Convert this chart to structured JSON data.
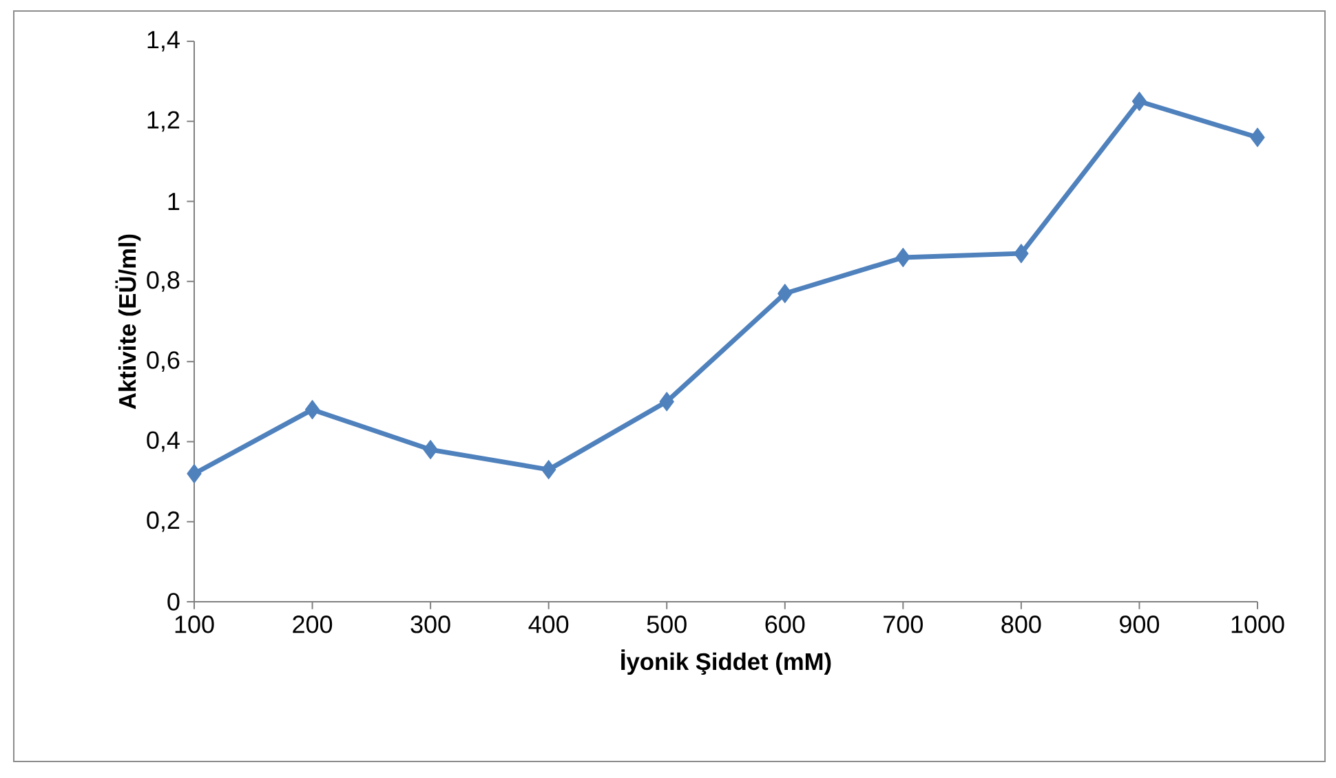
{
  "chart_data": {
    "type": "line",
    "xlabel": "İyonik Şiddet (mM)",
    "ylabel": "Aktivite (EÜ/ml)",
    "categories": [
      "100",
      "200",
      "300",
      "400",
      "500",
      "600",
      "700",
      "800",
      "900",
      "1000"
    ],
    "values": [
      0.32,
      0.48,
      0.38,
      0.33,
      0.5,
      0.77,
      0.86,
      0.87,
      1.25,
      1.16
    ],
    "color": "#4f81bd",
    "marker": "diamond",
    "grid": false,
    "ylim": [
      0,
      1.4
    ],
    "yticks": [
      0,
      {
        "value": 0.2,
        "label": "0,2"
      },
      {
        "value": 0.4,
        "label": "0,4"
      },
      {
        "value": 0.6,
        "label": "0,6"
      },
      {
        "value": 0.8,
        "label": "0,8"
      },
      1,
      {
        "value": 1.2,
        "label": "1,2"
      },
      {
        "value": 1.4,
        "label": "1,4"
      }
    ]
  }
}
